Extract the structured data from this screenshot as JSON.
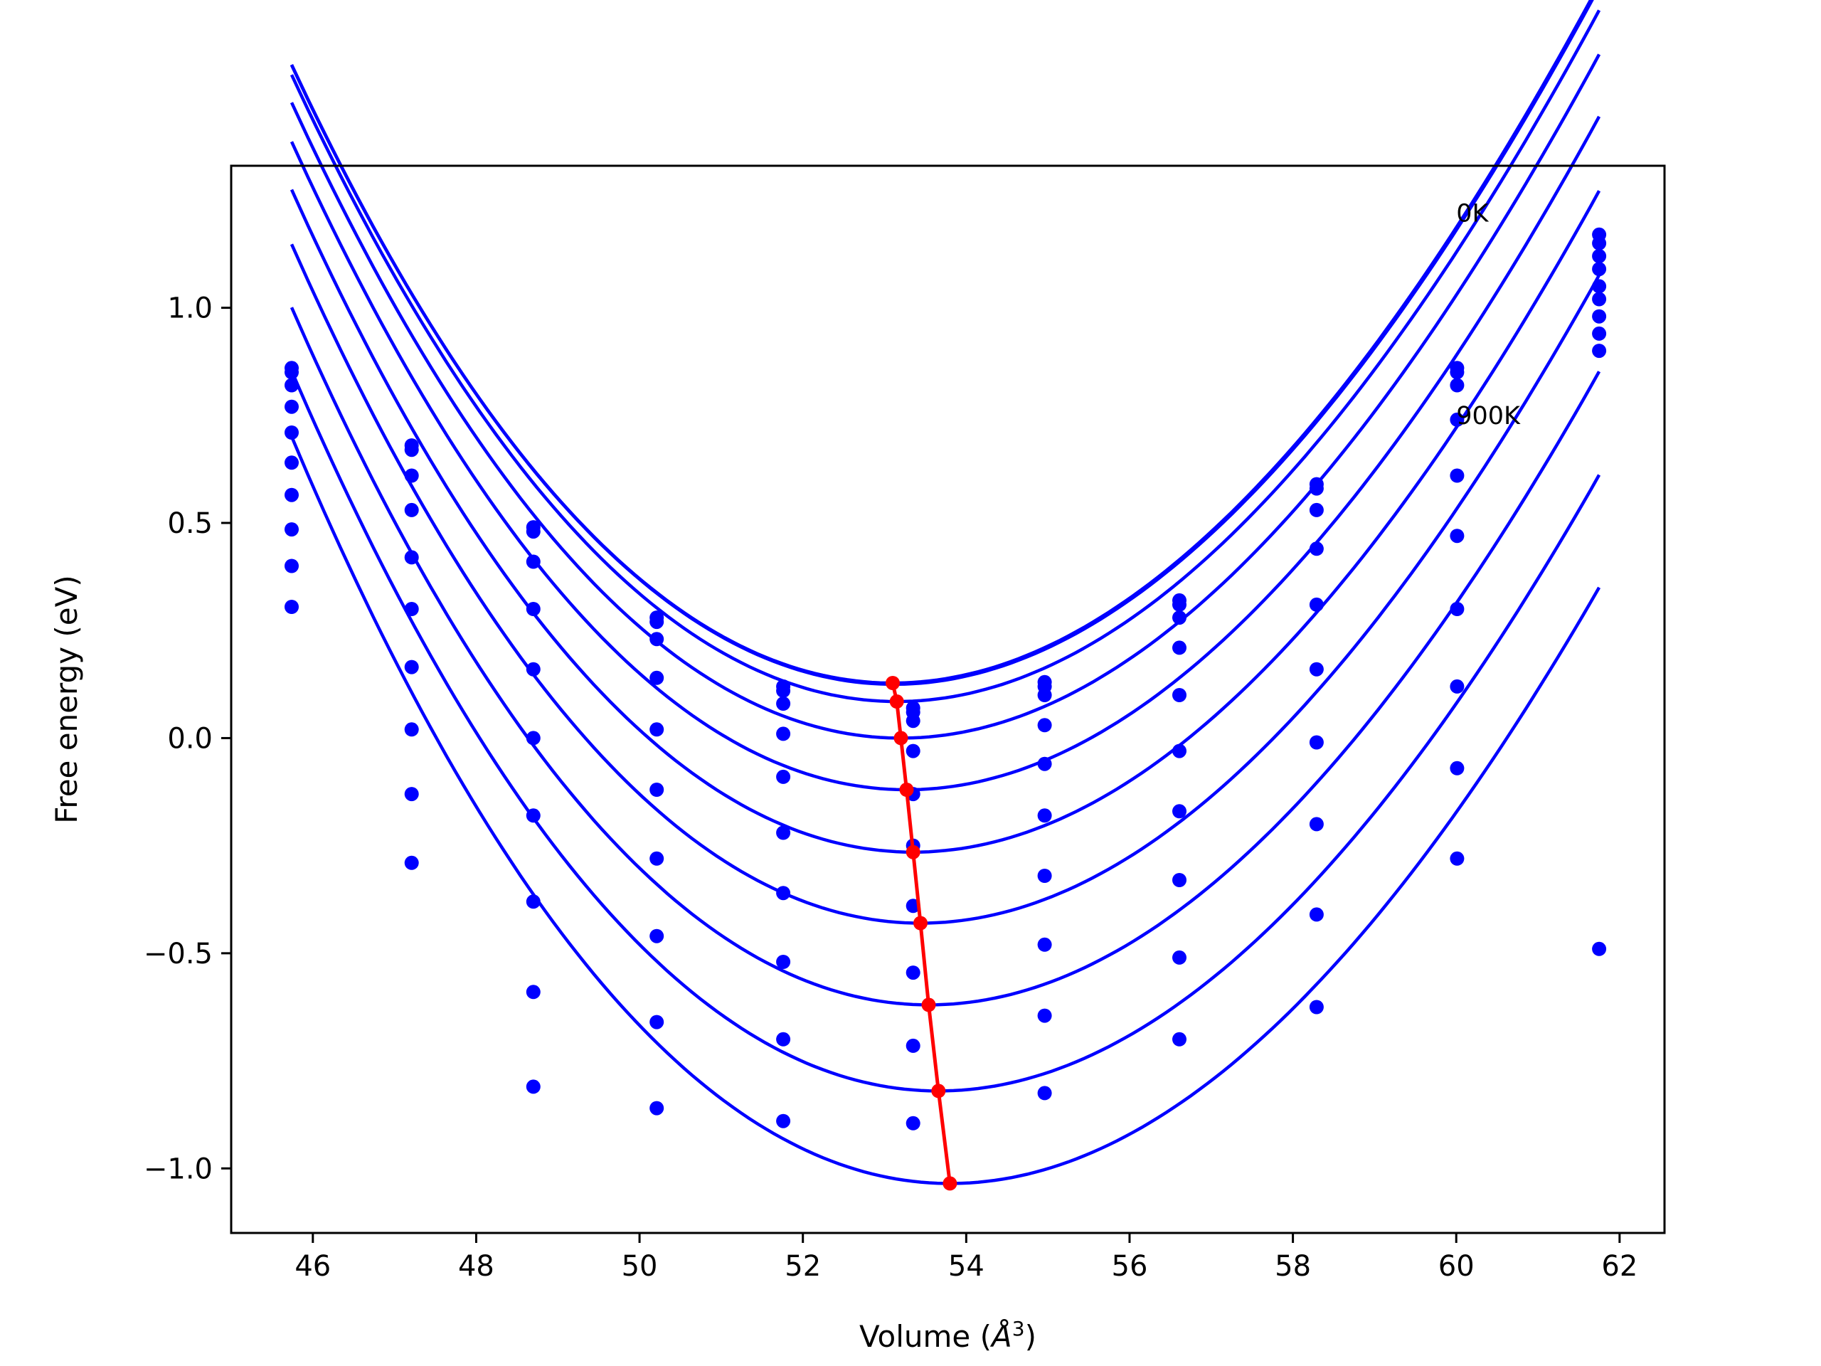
{
  "chart_data": {
    "type": "scatter",
    "xlabel": "Volume (Å³)",
    "xlabel_main": "Volume (",
    "xlabel_symbol": "Å",
    "xlabel_sup": "3",
    "xlabel_close": ")",
    "ylabel": "Free energy (eV)",
    "xlim": [
      45.0,
      62.55
    ],
    "ylim": [
      -1.15,
      1.33
    ],
    "x_ticks": [
      46,
      48,
      50,
      52,
      54,
      56,
      58,
      60,
      62
    ],
    "x_tick_labels": [
      "46",
      "48",
      "50",
      "52",
      "54",
      "56",
      "58",
      "60",
      "62"
    ],
    "y_ticks": [
      -1.0,
      -0.5,
      0.0,
      0.5,
      1.0
    ],
    "y_tick_labels": [
      "−1.0",
      "−0.5",
      "0.0",
      "0.5",
      "1.0"
    ],
    "grid": false,
    "annotations": [
      {
        "text": "0K",
        "x": 60.0,
        "y": 1.22
      },
      {
        "text": "900K",
        "x": 60.0,
        "y": 0.75
      }
    ],
    "volumes": [
      45.74,
      47.21,
      48.7,
      50.21,
      51.76,
      53.35,
      54.96,
      56.61,
      58.29,
      60.01,
      61.75
    ],
    "series": [
      {
        "color": "#0000ff",
        "v0": 53.1,
        "emin": 0.128,
        "a": 0.0243,
        "b": -0.0003,
        "points": [
          0.86,
          0.68,
          0.49,
          0.28,
          0.12,
          0.07,
          0.13,
          0.32,
          0.59,
          0.86,
          1.17
        ]
      },
      {
        "color": "#0000ff",
        "v0": 53.11,
        "emin": 0.125,
        "a": 0.0243,
        "b": -0.0003,
        "points": [
          0.85,
          0.67,
          0.48,
          0.27,
          0.11,
          0.06,
          0.12,
          0.31,
          0.58,
          0.85,
          1.15
        ]
      },
      {
        "color": "#0000ff",
        "v0": 53.15,
        "emin": 0.085,
        "a": 0.0243,
        "b": -0.0003,
        "points": [
          0.82,
          0.61,
          0.41,
          0.23,
          0.08,
          0.04,
          0.1,
          0.28,
          0.53,
          0.82,
          1.12
        ]
      },
      {
        "color": "#0000ff",
        "v0": 53.2,
        "emin": 0.0,
        "a": 0.0243,
        "b": -0.0003,
        "points": [
          0.77,
          0.53,
          0.3,
          0.14,
          0.01,
          -0.03,
          0.03,
          0.21,
          0.44,
          0.74,
          1.09
        ]
      },
      {
        "color": "#0000ff",
        "v0": 53.27,
        "emin": -0.12,
        "a": 0.0243,
        "b": -0.0003,
        "points": [
          0.71,
          0.42,
          0.16,
          0.02,
          -0.09,
          -0.13,
          -0.06,
          0.1,
          0.31,
          0.61,
          1.05
        ]
      },
      {
        "color": "#0000ff",
        "v0": 53.35,
        "emin": -0.265,
        "a": 0.0243,
        "b": -0.0003,
        "points": [
          0.64,
          0.3,
          0.0,
          -0.12,
          -0.22,
          -0.25,
          -0.18,
          -0.03,
          0.16,
          0.47,
          1.02
        ]
      },
      {
        "color": "#0000ff",
        "v0": 53.44,
        "emin": -0.43,
        "a": 0.0243,
        "b": -0.0003,
        "points": [
          0.565,
          0.165,
          -0.18,
          -0.28,
          -0.36,
          -0.39,
          -0.32,
          -0.17,
          -0.01,
          0.3,
          0.98
        ]
      },
      {
        "color": "#0000ff",
        "v0": 53.54,
        "emin": -0.62,
        "a": 0.0243,
        "b": -0.0003,
        "points": [
          0.485,
          0.02,
          -0.38,
          -0.46,
          -0.52,
          -0.545,
          -0.48,
          -0.33,
          -0.2,
          0.12,
          0.94
        ]
      },
      {
        "color": "#0000ff",
        "v0": 53.66,
        "emin": -0.82,
        "a": 0.0243,
        "b": -0.0003,
        "points": [
          0.4,
          -0.13,
          -0.59,
          -0.66,
          -0.7,
          -0.715,
          -0.645,
          -0.51,
          -0.41,
          -0.07,
          0.9
        ]
      },
      {
        "color": "#0000ff",
        "v0": 53.8,
        "emin": -1.035,
        "a": 0.0243,
        "b": -0.0003,
        "points": [
          0.305,
          -0.29,
          -0.81,
          -0.86,
          -0.89,
          -0.895,
          -0.825,
          -0.7,
          -0.625,
          -0.28,
          -0.49
        ]
      }
    ],
    "minima_line": {
      "color": "#ff0000",
      "x": [
        53.1,
        53.15,
        53.2,
        53.27,
        53.35,
        53.44,
        53.54,
        53.66,
        53.8
      ],
      "y": [
        0.128,
        0.085,
        0.0,
        -0.12,
        -0.265,
        -0.43,
        -0.62,
        -0.82,
        -1.035
      ]
    }
  }
}
